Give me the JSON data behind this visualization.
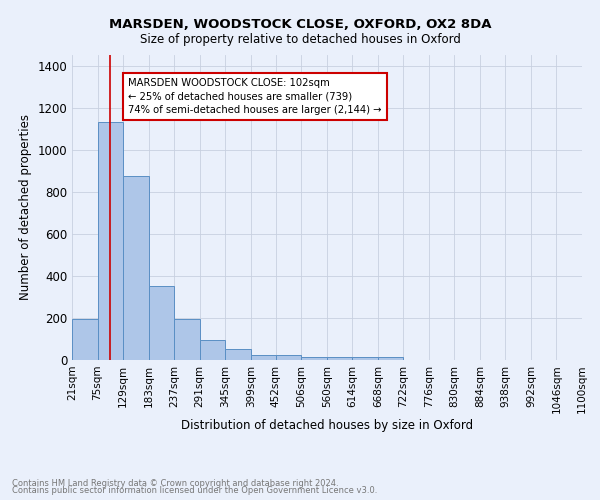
{
  "title": "MARSDEN, WOODSTOCK CLOSE, OXFORD, OX2 8DA",
  "subtitle": "Size of property relative to detached houses in Oxford",
  "xlabel": "Distribution of detached houses by size in Oxford",
  "ylabel": "Number of detached properties",
  "footnote1": "Contains HM Land Registry data © Crown copyright and database right 2024.",
  "footnote2": "Contains public sector information licensed under the Open Government Licence v3.0.",
  "bin_labels": [
    "21sqm",
    "75sqm",
    "129sqm",
    "183sqm",
    "237sqm",
    "291sqm",
    "345sqm",
    "399sqm",
    "452sqm",
    "506sqm",
    "560sqm",
    "614sqm",
    "668sqm",
    "722sqm",
    "776sqm",
    "830sqm",
    "884sqm",
    "938sqm",
    "992sqm",
    "1046sqm",
    "1100sqm"
  ],
  "bar_values": [
    195,
    1130,
    875,
    350,
    195,
    95,
    50,
    22,
    22,
    15,
    15,
    13,
    13,
    0,
    0,
    0,
    0,
    0,
    0,
    0
  ],
  "bin_edges": [
    21,
    75,
    129,
    183,
    237,
    291,
    345,
    399,
    452,
    506,
    560,
    614,
    668,
    722,
    776,
    830,
    884,
    938,
    992,
    1046,
    1100
  ],
  "bar_color": "#aec6e8",
  "bar_edge_color": "#5a8fc4",
  "bg_color": "#eaf0fb",
  "grid_color": "#c8d0e0",
  "red_line_x": 102,
  "red_line_color": "#cc0000",
  "annotation_line1": "MARSDEN WOODSTOCK CLOSE: 102sqm",
  "annotation_line2": "← 25% of detached houses are smaller (739)",
  "annotation_line3": "74% of semi-detached houses are larger (2,144) →",
  "annotation_box_color": "#ffffff",
  "annotation_box_edge": "#cc0000",
  "ylim": [
    0,
    1450
  ],
  "yticks": [
    0,
    200,
    400,
    600,
    800,
    1000,
    1200,
    1400
  ]
}
